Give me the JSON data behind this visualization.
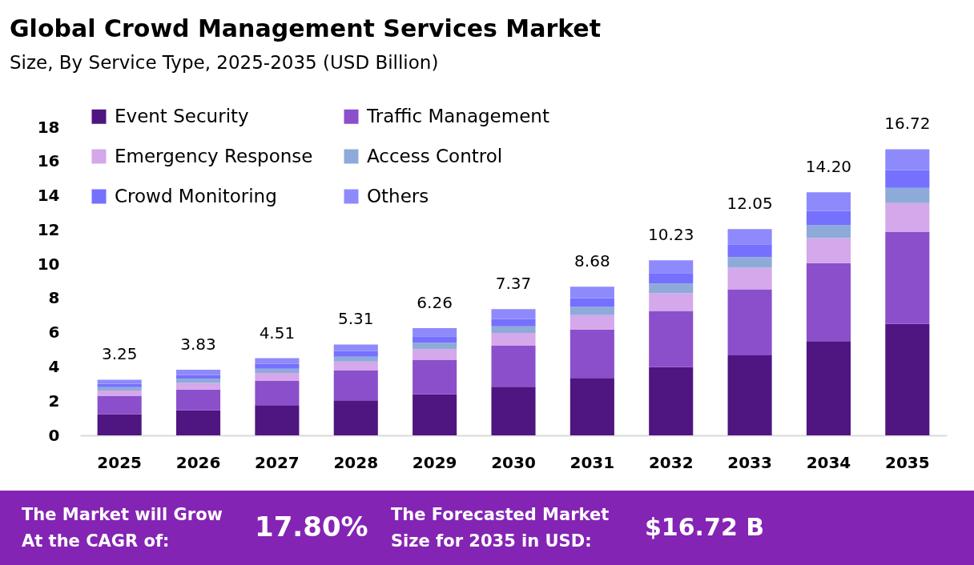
{
  "chart_data": {
    "type": "bar",
    "title": "Global Crowd Management Services Market",
    "subtitle": "Size, By Service Type, 2025-2035 (USD Billion)",
    "categories": [
      "2025",
      "2026",
      "2027",
      "2028",
      "2029",
      "2030",
      "2031",
      "2032",
      "2033",
      "2034",
      "2035"
    ],
    "stacked": true,
    "series": [
      {
        "name": "Event Security",
        "color": "#4f1580",
        "values": [
          1.24,
          1.46,
          1.76,
          2.04,
          2.4,
          2.84,
          3.36,
          3.98,
          4.67,
          5.5,
          6.51
        ]
      },
      {
        "name": "Traffic Management",
        "color": "#8b4fcb",
        "values": [
          1.05,
          1.22,
          1.42,
          1.75,
          2.02,
          2.4,
          2.82,
          3.29,
          3.86,
          4.56,
          5.37
        ]
      },
      {
        "name": "Emergency Response",
        "color": "#d4a8ea",
        "values": [
          0.33,
          0.38,
          0.47,
          0.52,
          0.61,
          0.75,
          0.85,
          1.04,
          1.27,
          1.46,
          1.69
        ]
      },
      {
        "name": "Access Control",
        "color": "#8eaad9",
        "values": [
          0.2,
          0.25,
          0.24,
          0.28,
          0.38,
          0.38,
          0.47,
          0.56,
          0.61,
          0.75,
          0.89
        ]
      },
      {
        "name": "Crowd Monitoring",
        "color": "#7570fd",
        "values": [
          0.2,
          0.22,
          0.28,
          0.33,
          0.38,
          0.42,
          0.52,
          0.61,
          0.75,
          0.85,
          1.04
        ]
      },
      {
        "name": "Others",
        "color": "#8e8afc",
        "values": [
          0.23,
          0.3,
          0.34,
          0.39,
          0.47,
          0.58,
          0.66,
          0.75,
          0.89,
          1.08,
          1.22
        ]
      }
    ],
    "totals": [
      "3.25",
      "3.83",
      "4.51",
      "5.31",
      "6.26",
      "7.37",
      "8.68",
      "10.23",
      "12.05",
      "14.20",
      "16.72"
    ],
    "ylim": [
      0,
      18
    ],
    "yticks": [
      0,
      2,
      4,
      6,
      8,
      10,
      12,
      14,
      16,
      18
    ],
    "grid": false,
    "legend": "top left",
    "annotations": [
      "The Market will Grow\nAt the CAGR of:",
      "17.80%",
      "The Forecasted Market\nSize for 2035 in USD:",
      "$16.72 B"
    ]
  }
}
